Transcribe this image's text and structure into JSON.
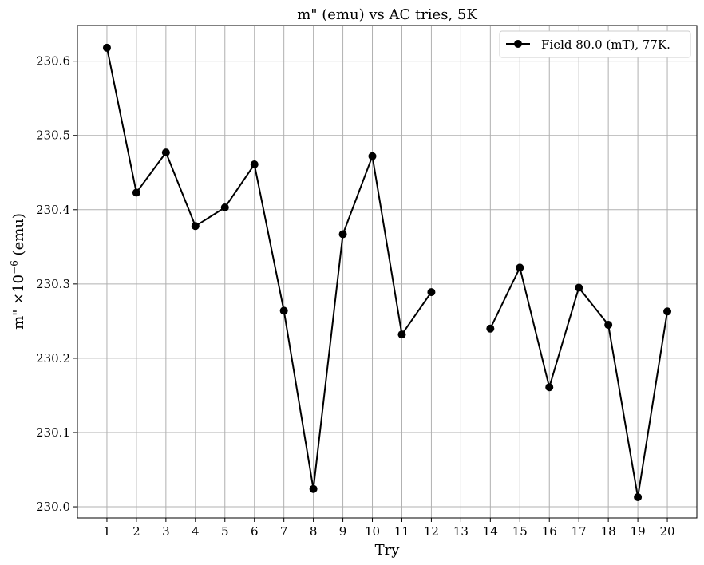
{
  "chart_data": {
    "type": "line",
    "title": "m\" (emu) vs  AC tries, 5K",
    "xlabel": "Try",
    "ylabel_main": "m\" ×10",
    "ylabel_exponent": "−6",
    "ylabel_unit": " (emu)",
    "xlim": [
      0,
      21
    ],
    "ylim": [
      229.985,
      230.648
    ],
    "x_ticks": [
      1,
      2,
      3,
      4,
      5,
      6,
      7,
      8,
      9,
      10,
      11,
      12,
      13,
      14,
      15,
      16,
      17,
      18,
      19,
      20
    ],
    "y_ticks": [
      230.0,
      230.1,
      230.2,
      230.3,
      230.4,
      230.5,
      230.6
    ],
    "y_tick_labels": [
      "230.0",
      "230.1",
      "230.2",
      "230.3",
      "230.4",
      "230.5",
      "230.6"
    ],
    "grid": true,
    "legend_position": "top-right",
    "series": [
      {
        "name": "Field 80.0 (mT), 77K.",
        "color": "#000000",
        "marker": "circle",
        "x": [
          1,
          2,
          3,
          4,
          5,
          6,
          7,
          8,
          9,
          10,
          11,
          12,
          13,
          14,
          15,
          16,
          17,
          18,
          19,
          20
        ],
        "y": [
          230.618,
          230.423,
          230.477,
          230.378,
          230.403,
          230.461,
          230.264,
          230.024,
          230.367,
          230.472,
          230.232,
          230.289,
          null,
          230.24,
          230.322,
          230.161,
          230.295,
          230.245,
          230.013,
          230.263
        ]
      }
    ]
  }
}
